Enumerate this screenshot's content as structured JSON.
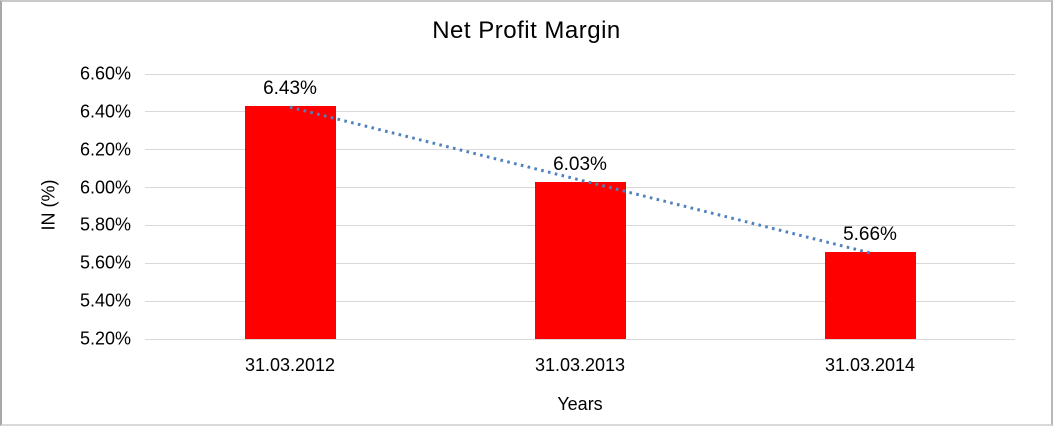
{
  "chart_data": {
    "type": "bar",
    "title": "Net Profit Margin",
    "xlabel": "Years",
    "ylabel": "IN (%)",
    "categories": [
      "31.03.2012",
      "31.03.2013",
      "31.03.2014"
    ],
    "values": [
      6.43,
      6.03,
      5.66
    ],
    "data_labels": [
      "6.43%",
      "6.03%",
      "5.66%"
    ],
    "ylim": [
      5.2,
      6.6
    ],
    "ytick_step": 0.2,
    "ytick_labels": [
      "5.20%",
      "5.40%",
      "5.60%",
      "5.80%",
      "6.00%",
      "6.20%",
      "6.40%",
      "6.60%"
    ],
    "grid": true,
    "legend": "none",
    "colors": {
      "bar": "#ff0000",
      "trendline": "#4f81bd",
      "gridline": "#d9d9d9",
      "text": "#000000"
    },
    "trendline": {
      "type": "linear",
      "style": "dotted"
    }
  }
}
